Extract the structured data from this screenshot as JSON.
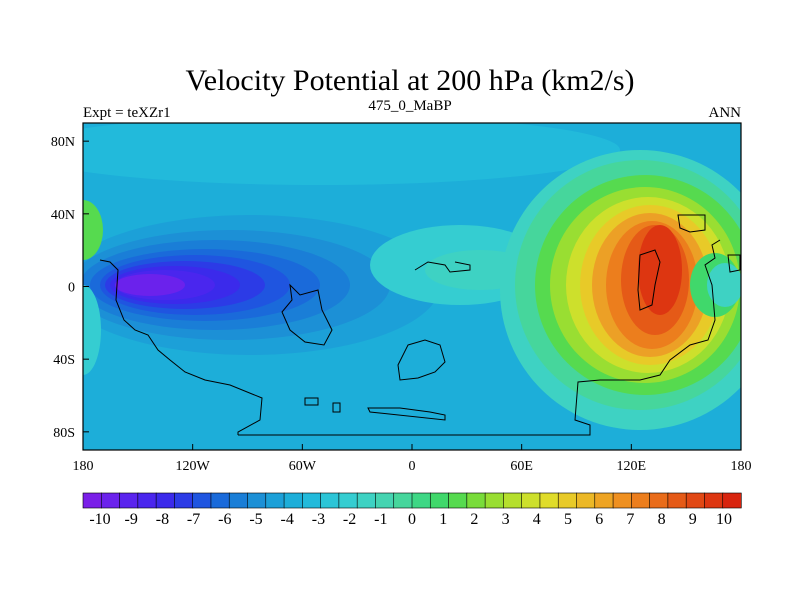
{
  "chart_data": {
    "type": "heatmap",
    "title": "Velocity Potential at 200 hPa (km2/s)",
    "left_label": "Expt = teXZr1",
    "center_label": "475_0_MaBP",
    "right_label": "ANN",
    "x_ticks": [
      "180",
      "120W",
      "60W",
      "0",
      "60E",
      "120E",
      "180"
    ],
    "x_tick_values": [
      -180,
      -120,
      -60,
      0,
      60,
      120,
      180
    ],
    "y_ticks": [
      "80N",
      "40N",
      "0",
      "40S",
      "80S"
    ],
    "y_tick_values": [
      80,
      40,
      0,
      -40,
      -80
    ],
    "xlim": [
      -180,
      180
    ],
    "ylim": [
      -90,
      90
    ],
    "colorbar": {
      "labels": [
        "-10",
        "-9",
        "-8",
        "-7",
        "-6",
        "-5",
        "-4",
        "-3",
        "-2",
        "-1",
        "0",
        "1",
        "2",
        "3",
        "4",
        "5",
        "6",
        "7",
        "8",
        "9",
        "10"
      ],
      "levels": [
        -10,
        -9.5,
        -9,
        -8.5,
        -8,
        -7.5,
        -7,
        -6.5,
        -6,
        -5.5,
        -5,
        -4.5,
        -4,
        -3.5,
        -3,
        -2.5,
        -2,
        -1.5,
        -1,
        -0.5,
        0,
        0.5,
        1,
        1.5,
        2,
        2.5,
        3,
        3.5,
        4,
        4.5,
        5,
        5.5,
        6,
        6.5,
        7,
        7.5,
        8,
        8.5,
        9,
        9.5,
        10
      ],
      "colors": [
        "#7a1fe8",
        "#6b22ec",
        "#5a24ee",
        "#4a26ee",
        "#3b2aeb",
        "#2c3be6",
        "#1f55e0",
        "#1a6ada",
        "#1a7ed7",
        "#1c90d6",
        "#1ca0d8",
        "#1daed9",
        "#22badb",
        "#2cc5d7",
        "#35cdd1",
        "#3ed2c3",
        "#45d4b1",
        "#46d69c",
        "#3ed785",
        "#40d86b",
        "#56da4f",
        "#79dc3a",
        "#99de32",
        "#b5df2d",
        "#cde02c",
        "#e0dc2a",
        "#e8ca28",
        "#ecb826",
        "#ee a423",
        "#ef9020",
        "#ec7e1d",
        "#e96c1a",
        "#e55a17",
        "#e14814",
        "#dd3611",
        "#d8240e"
      ]
    },
    "field_units": "km2/s (x10^6)"
  }
}
